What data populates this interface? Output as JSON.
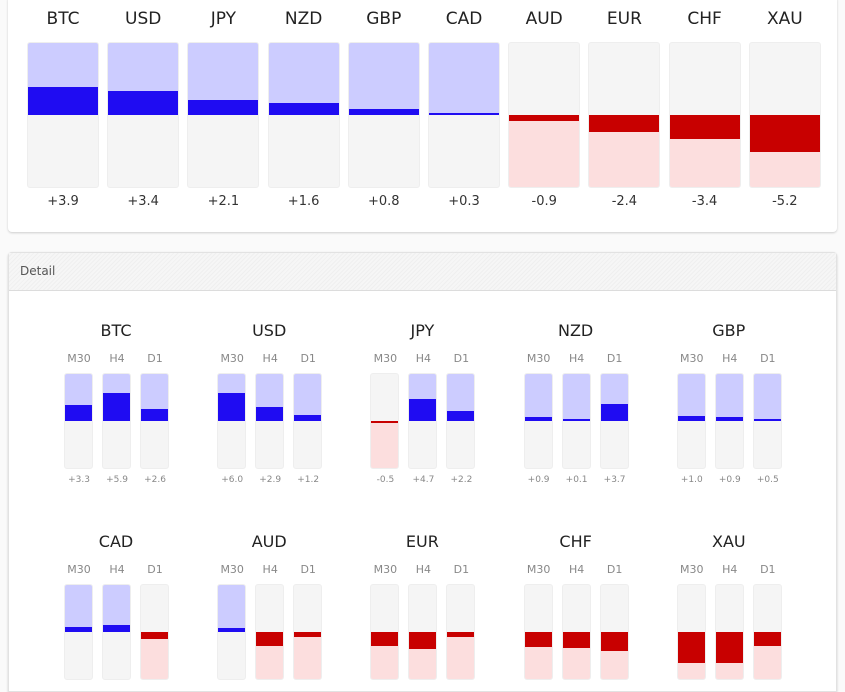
{
  "colors": {
    "positive_fill": "#1f0cf2",
    "positive_bg": "#ccccff",
    "negative_fill": "#c80000",
    "negative_bg": "#fcdede",
    "track": "#f5f5f5"
  },
  "detail": {
    "title": "Detail"
  },
  "chart_data": [
    {
      "type": "bar",
      "title": "",
      "categories": [
        "BTC",
        "USD",
        "JPY",
        "NZD",
        "GBP",
        "CAD",
        "AUD",
        "EUR",
        "CHF",
        "XAU"
      ],
      "values": [
        3.9,
        3.4,
        2.1,
        1.6,
        0.8,
        0.3,
        -0.9,
        -2.4,
        -3.4,
        -5.2
      ],
      "value_labels": [
        "+3.9",
        "+3.4",
        "+2.1",
        "+1.6",
        "+0.8",
        "+0.3",
        "-0.9",
        "-2.4",
        "-3.4",
        "-5.2"
      ],
      "ylim": [
        -10,
        10
      ],
      "grid": false
    },
    {
      "type": "bar",
      "title": "Detail",
      "timeframes": [
        "M30",
        "H4",
        "D1"
      ],
      "ylim": [
        -10,
        10
      ],
      "groups": [
        {
          "name": "BTC",
          "values": [
            3.3,
            5.9,
            2.6
          ],
          "value_labels": [
            "+3.3",
            "+5.9",
            "+2.6"
          ]
        },
        {
          "name": "USD",
          "values": [
            6.0,
            2.9,
            1.2
          ],
          "value_labels": [
            "+6.0",
            "+2.9",
            "+1.2"
          ]
        },
        {
          "name": "JPY",
          "values": [
            -0.5,
            4.7,
            2.2
          ],
          "value_labels": [
            "-0.5",
            "+4.7",
            "+2.2"
          ]
        },
        {
          "name": "NZD",
          "values": [
            0.9,
            0.1,
            3.7
          ],
          "value_labels": [
            "+0.9",
            "+0.1",
            "+3.7"
          ]
        },
        {
          "name": "GBP",
          "values": [
            1.0,
            0.9,
            0.5
          ],
          "value_labels": [
            "+1.0",
            "+0.9",
            "+0.5"
          ]
        },
        {
          "name": "CAD",
          "values": [
            1.0,
            1.4,
            -1.4
          ]
        },
        {
          "name": "AUD",
          "values": [
            0.8,
            -2.9,
            -1.0
          ]
        },
        {
          "name": "EUR",
          "values": [
            -2.9,
            -3.6,
            -1.0
          ]
        },
        {
          "name": "CHF",
          "values": [
            -3.1,
            -3.4,
            -4.0
          ]
        },
        {
          "name": "XAU",
          "values": [
            -6.7,
            -6.5,
            -2.9
          ]
        }
      ]
    }
  ]
}
